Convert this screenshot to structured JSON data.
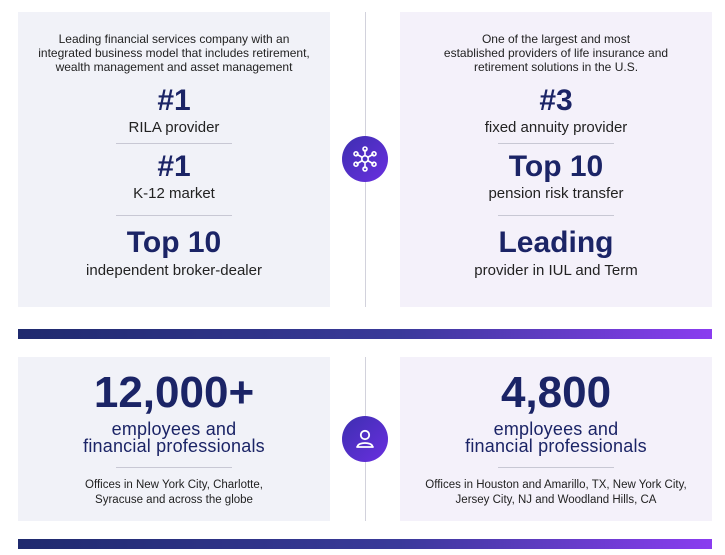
{
  "left_top": {
    "intro": [
      "Leading financial services company with an",
      "integrated business model that includes retirement,",
      "wealth management and asset management"
    ],
    "stats": [
      {
        "value": "#1",
        "label": "RILA provider"
      },
      {
        "value": "#1",
        "label": "K-12 market"
      },
      {
        "value": "Top 10",
        "label": "independent broker-dealer"
      }
    ]
  },
  "right_top": {
    "intro": [
      "One of the largest and most",
      "established providers of life insurance and",
      "retirement solutions in the U.S."
    ],
    "stats": [
      {
        "value": "#3",
        "label": "fixed annuity provider"
      },
      {
        "value": "Top 10",
        "label": "pension risk transfer"
      },
      {
        "value": "Leading",
        "label": "provider in IUL and Term"
      }
    ]
  },
  "left_bottom": {
    "value": "12,000+",
    "label": [
      "employees and",
      "financial professionals"
    ],
    "note": [
      "Offices in New York City, Charlotte,",
      "Syracuse and across the globe"
    ]
  },
  "right_bottom": {
    "value": "4,800",
    "label": [
      "employees and",
      "financial professionals"
    ],
    "note": [
      "Offices in Houston and Amarillo, TX, New York City,",
      "Jersey City, NJ and Woodland Hills, CA"
    ]
  },
  "icons": {
    "top_center": "network-hub-icon",
    "bottom_center": "person-icon"
  },
  "colors": {
    "navy": "#1b2466",
    "purple": "#6a2fe0"
  }
}
